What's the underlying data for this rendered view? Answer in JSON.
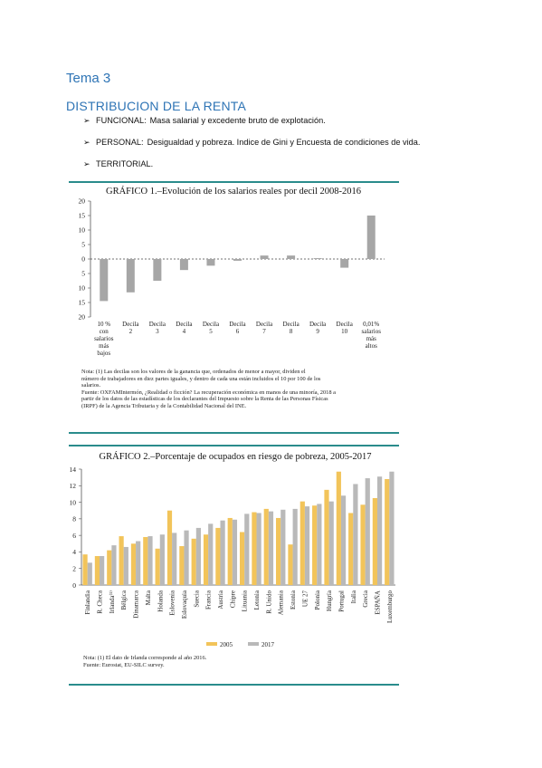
{
  "heading": {
    "topic": "Tema 3",
    "section": "DISTRIBUCION DE LA RENTA"
  },
  "bullets": [
    {
      "label": "FUNCIONAL:",
      "text": "Masa salarial y excedente bruto de explotación."
    },
    {
      "label": "PERSONAL:",
      "text": "Desigualdad y pobreza. Indice de Gini y Encuesta de condiciones de vida."
    },
    {
      "label": "TERRITORIAL.",
      "text": ""
    }
  ],
  "chart_data": [
    {
      "type": "bar",
      "title": "GRÁFICO 1.–Evolución de los salarios reales por decil 2008-2016",
      "categories": [
        "10 % con salarios más bajos",
        "Decila 2",
        "Decila 3",
        "Decila 4",
        "Decila 5",
        "Decila 6",
        "Decila 7",
        "Decila 8",
        "Decila 9",
        "Decila 10",
        "0,01% salarios más altos"
      ],
      "category_lines": [
        [
          "10 %",
          "con",
          "salarios",
          "más",
          "bajos"
        ],
        [
          "Decila",
          "2"
        ],
        [
          "Decila",
          "3"
        ],
        [
          "Decila",
          "4"
        ],
        [
          "Decila",
          "5"
        ],
        [
          "Decila",
          "6"
        ],
        [
          "Decila",
          "7"
        ],
        [
          "Decila",
          "8"
        ],
        [
          "Decila",
          "9"
        ],
        [
          "Decila",
          "10"
        ],
        [
          "0,01%",
          "salarios",
          "más",
          "altos"
        ]
      ],
      "values": [
        -14.5,
        -11.5,
        -7.5,
        -3.8,
        -2.3,
        -0.6,
        1.2,
        1.2,
        0.3,
        -3.0,
        15.0
      ],
      "ylim": [
        -20,
        20
      ],
      "yticks": [
        20,
        15,
        10,
        5,
        0,
        5,
        10,
        15,
        20
      ],
      "bar_color": "#a6a6a6",
      "grid": false
    },
    {
      "type": "bar",
      "title": "GRÁFICO 2.–Porcentaje de ocupados en riesgo de pobreza, 2005-2017",
      "categories": [
        "Finlandia",
        "R. Checa",
        "Irlanda",
        "Bélgica",
        "Dinamarca",
        "Malta",
        "Holanda",
        "Eslovenia",
        "Eslovaquia",
        "Suecia",
        "Francia",
        "Austria",
        "Chipre",
        "Lituania",
        "Letonia",
        "R. Unido",
        "Alemania",
        "Estonia",
        "UE 27",
        "Polonia",
        "Hungría",
        "Portugal",
        "Italia",
        "Grecia",
        "ESPAÑA",
        "Luxemburgo"
      ],
      "category_labels": [
        "Finlandia",
        "R. Checa",
        "Irlanda⁽¹⁾",
        "Bélgica",
        "Dinamarca",
        "Malta",
        "Holanda",
        "Eslovenia",
        "Eslovaquia",
        "Suecia",
        "Francia",
        "Austria",
        "Chipre",
        "Lituania",
        "Letonia",
        "R. Unido",
        "Alemania",
        "Estonia",
        "UE 27",
        "Polonia",
        "Hungría",
        "Portugal",
        "Italia",
        "Grecia",
        "ESPAÑA",
        "Luxemburgo"
      ],
      "series": [
        {
          "name": "2005",
          "color": "#f2c45a",
          "values": [
            3.7,
            3.5,
            4.2,
            5.9,
            5.0,
            5.8,
            4.4,
            9.0,
            4.7,
            5.6,
            6.1,
            6.9,
            8.1,
            6.4,
            8.8,
            9.2,
            8.1,
            4.9,
            10.1,
            9.6,
            11.5,
            13.7,
            8.7,
            9.7,
            10.5,
            12.8
          ]
        },
        {
          "name": "2017",
          "color": "#b9b9b9",
          "values": [
            2.7,
            3.5,
            4.8,
            4.6,
            5.3,
            5.9,
            6.1,
            6.3,
            6.6,
            6.9,
            7.4,
            7.8,
            7.9,
            8.6,
            8.7,
            8.9,
            9.1,
            9.2,
            9.5,
            9.8,
            10.1,
            10.8,
            12.2,
            12.9,
            13.1,
            13.7
          ]
        }
      ],
      "ylim": [
        0,
        14
      ],
      "yticks": [
        0,
        2,
        4,
        6,
        8,
        10,
        12,
        14
      ],
      "legend": "bottom-center",
      "grid": false
    }
  ],
  "notes": {
    "chart1": [
      "Nota: (1) Las decilas son los valores de la ganancia que, ordenados de menor a mayor, dividen el",
      "número de trabajadores en diez partes iguales, y dentro de cada una están incluidos el 10 por 100 de los",
      "salarios.",
      "Fuente: OXFAMIntermón, ¿Realidad o ficción? La recuperación económica en manos de una minoría, 2018 a",
      "partir de los datos de las estadísticas de los declarantes del Impuesto sobre la Renta de las Personas Físicas",
      "(IRPF) de la Agencia Tributaria y de la Contabilidad Nacional del INE."
    ],
    "chart2": [
      "Nota: (1) El dato de Irlanda corresponde al año 2016.",
      "Fuente: Eurostat, EU-SILC survey."
    ]
  }
}
